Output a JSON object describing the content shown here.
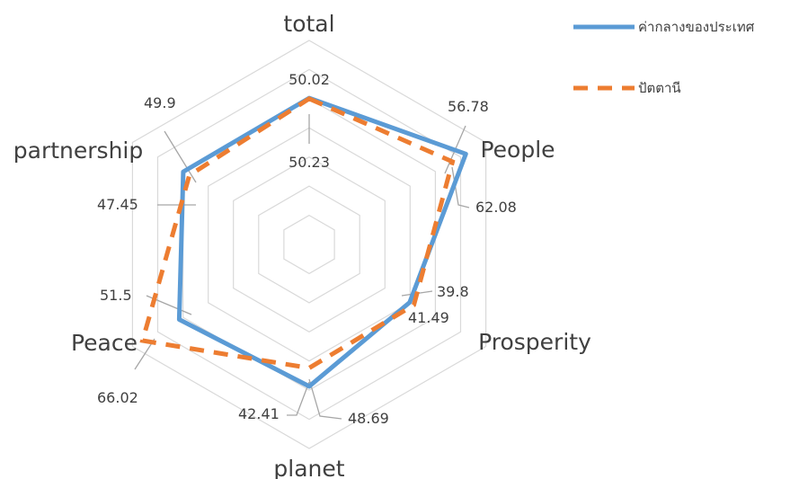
{
  "chart_data": {
    "type": "radar",
    "categories": [
      "total",
      "People",
      "Prosperity",
      "planet",
      "Peace",
      "partnership"
    ],
    "rlim": [
      0,
      70
    ],
    "grid": true,
    "legend_position": "top-right",
    "series": [
      {
        "name": "ค่ากลางของประเทศ",
        "values": [
          50.23,
          62.08,
          39.8,
          48.69,
          51.5,
          49.9
        ],
        "labels": [
          "50.23",
          "62.08",
          "39.8",
          "48.69",
          "51.5",
          "49.9"
        ],
        "color": "#5B9BD5",
        "line": "solid"
      },
      {
        "name": "ปัตตานี",
        "values": [
          50.02,
          56.78,
          41.49,
          42.41,
          66.02,
          47.45
        ],
        "labels": [
          "50.02",
          "56.78",
          "41.49",
          "42.41",
          "66.02",
          "47.45"
        ],
        "color": "#ED7D31",
        "line": "dashed"
      }
    ]
  }
}
